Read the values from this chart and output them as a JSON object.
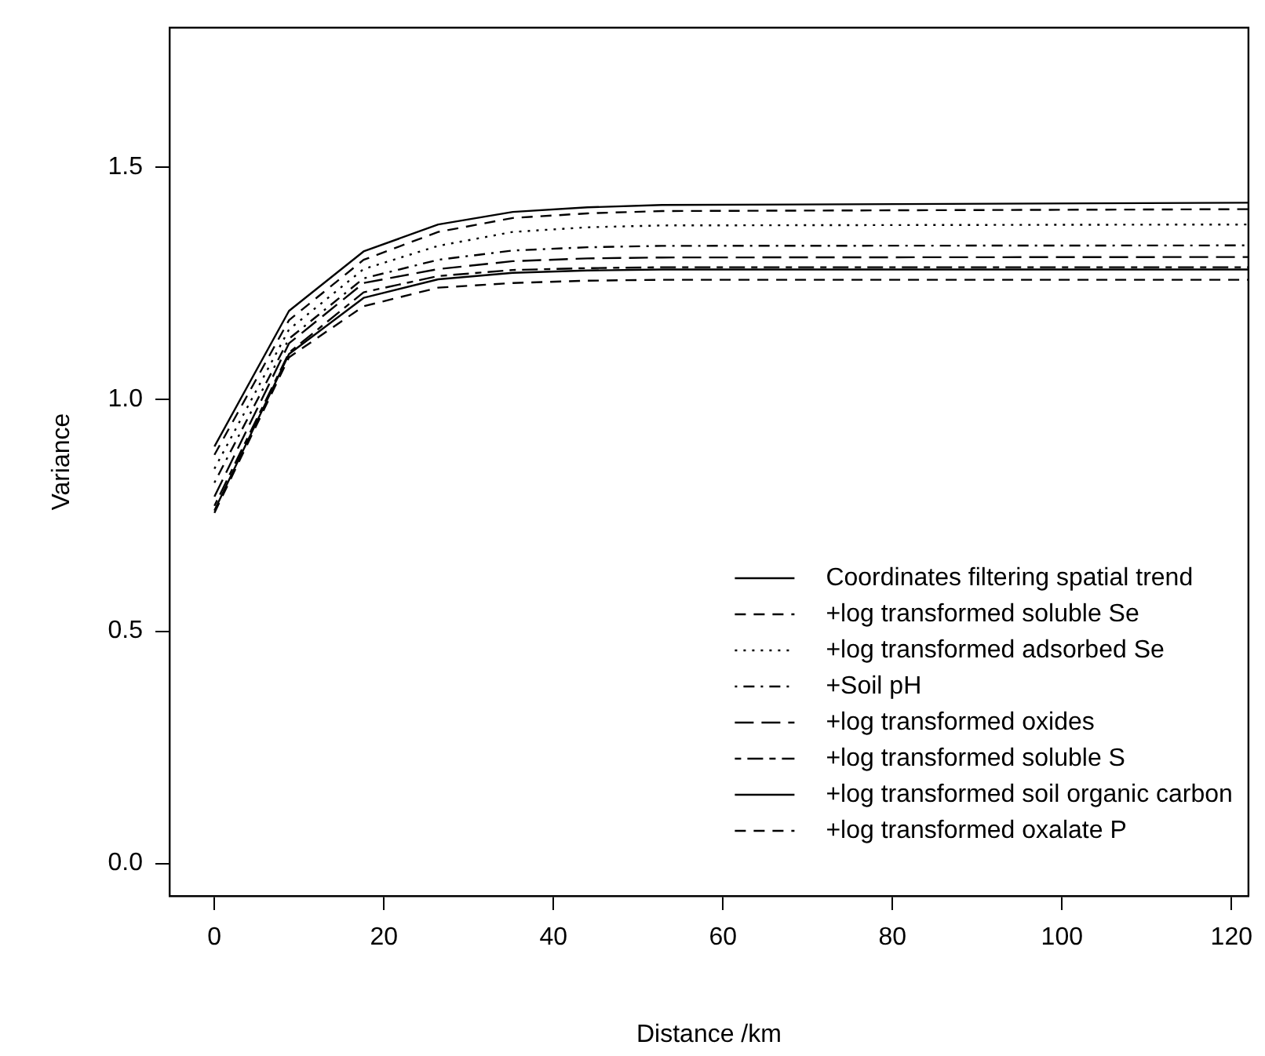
{
  "chart_data": {
    "type": "line",
    "xlabel": "Distance /km",
    "ylabel": "Variance",
    "x": [
      0,
      8.8,
      17.6,
      26.4,
      35.2,
      44,
      52.8,
      122
    ],
    "xlim": [
      -5.3,
      122
    ],
    "xticks": [
      0,
      20,
      40,
      60,
      80,
      100,
      120
    ],
    "ylim": [
      -0.07,
      1.8
    ],
    "yticks": [
      {
        "value": 0,
        "label": "0.0"
      },
      0.5,
      {
        "value": 1,
        "label": "1.0"
      },
      1.5
    ],
    "grid": false,
    "legend": "bottom right",
    "marker": "none",
    "series": [
      {
        "name": "Coordinates filtering spatial trend",
        "color": "#000000",
        "line_style": "solid",
        "values": [
          0.898,
          1.19,
          1.318,
          1.376,
          1.403,
          1.413,
          1.418,
          1.423
        ]
      },
      {
        "name": "+log transformed soluble Se",
        "color": "#000000",
        "line_style": "dashed",
        "values": [
          0.88,
          1.17,
          1.3,
          1.36,
          1.39,
          1.4,
          1.405,
          1.409
        ]
      },
      {
        "name": "+log transformed adsorbed Se",
        "color": "#000000",
        "line_style": "dotted",
        "values": [
          0.85,
          1.15,
          1.28,
          1.33,
          1.36,
          1.37,
          1.374,
          1.376
        ]
      },
      {
        "name": "+Soil pH",
        "color": "#000000",
        "line_style": "dotdash",
        "values": [
          0.82,
          1.13,
          1.26,
          1.3,
          1.32,
          1.327,
          1.33,
          1.331
        ]
      },
      {
        "name": "+log transformed oxides",
        "color": "#000000",
        "line_style": "longdash",
        "values": [
          0.79,
          1.12,
          1.25,
          1.28,
          1.297,
          1.303,
          1.305,
          1.306
        ]
      },
      {
        "name": "+log transformed soluble S",
        "color": "#000000",
        "line_style": "twodash",
        "values": [
          0.77,
          1.1,
          1.23,
          1.265,
          1.278,
          1.282,
          1.284,
          1.284
        ]
      },
      {
        "name": "+log transformed soil organic carbon",
        "color": "#000000",
        "line_style": "solid",
        "values": [
          0.76,
          1.097,
          1.218,
          1.258,
          1.272,
          1.277,
          1.279,
          1.279
        ]
      },
      {
        "name": "+log transformed oxalate P",
        "color": "#000000",
        "line_style": "dashed",
        "values": [
          0.755,
          1.09,
          1.2,
          1.24,
          1.25,
          1.255,
          1.257,
          1.257
        ]
      }
    ]
  }
}
